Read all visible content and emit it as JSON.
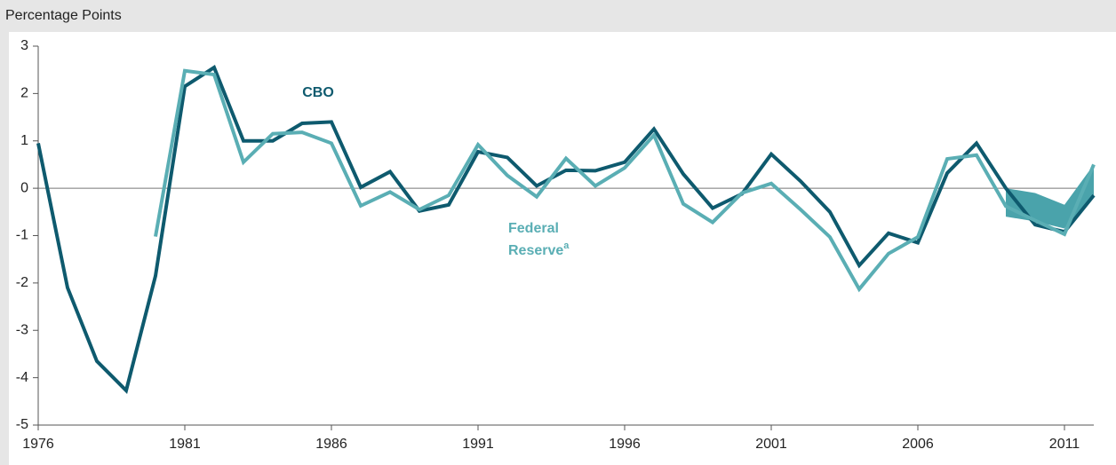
{
  "chart_data": {
    "type": "line",
    "y_label": "Percentage Points",
    "x": [
      1976,
      1977,
      1978,
      1979,
      1980,
      1981,
      1982,
      1983,
      1984,
      1985,
      1986,
      1987,
      1988,
      1989,
      1990,
      1991,
      1992,
      1993,
      1994,
      1995,
      1996,
      1997,
      1998,
      1999,
      2000,
      2001,
      2002,
      2003,
      2004,
      2005,
      2006,
      2007,
      2008,
      2009,
      2010,
      2011,
      2012
    ],
    "series": [
      {
        "name": "CBO",
        "color": "#0e5a6e",
        "values": [
          0.95,
          -2.1,
          -3.65,
          -4.27,
          -1.85,
          2.15,
          2.55,
          1.0,
          1.0,
          1.37,
          1.4,
          0.02,
          0.35,
          -0.48,
          -0.35,
          0.77,
          0.65,
          0.05,
          0.38,
          0.37,
          0.55,
          1.25,
          0.3,
          -0.42,
          -0.12,
          0.72,
          0.15,
          -0.5,
          -1.63,
          -0.95,
          -1.15,
          0.32,
          0.95,
          0.0,
          -0.77,
          -0.92,
          -0.15
        ]
      },
      {
        "name": "Federal Reserve",
        "color": "#5aaeb4",
        "values": [
          null,
          null,
          null,
          null,
          -1.02,
          2.48,
          2.4,
          0.55,
          1.15,
          1.18,
          0.95,
          -0.37,
          -0.08,
          -0.45,
          -0.15,
          0.92,
          0.27,
          -0.18,
          0.63,
          0.05,
          0.43,
          1.12,
          -0.33,
          -0.72,
          -0.1,
          0.1,
          -0.45,
          -1.03,
          -2.13,
          -1.38,
          -1.03,
          0.62,
          0.7,
          -0.38,
          -0.68,
          -0.97,
          0.5
        ]
      }
    ],
    "note_marker": "a",
    "band": {
      "color": "#4aa3ab",
      "x": [
        2009,
        2010,
        2011,
        2012
      ],
      "low": [
        -0.6,
        -0.7,
        -0.85,
        -0.15
      ],
      "high": [
        0.0,
        -0.1,
        -0.35,
        0.5
      ]
    },
    "xlim": [
      1976,
      2012
    ],
    "xticks": [
      1976,
      1981,
      1986,
      1991,
      1996,
      2001,
      2006,
      2011
    ],
    "ylim": [
      -5,
      3
    ],
    "yticks": [
      -5,
      -4,
      -3,
      -2,
      -1,
      0,
      1,
      2,
      3
    ]
  }
}
